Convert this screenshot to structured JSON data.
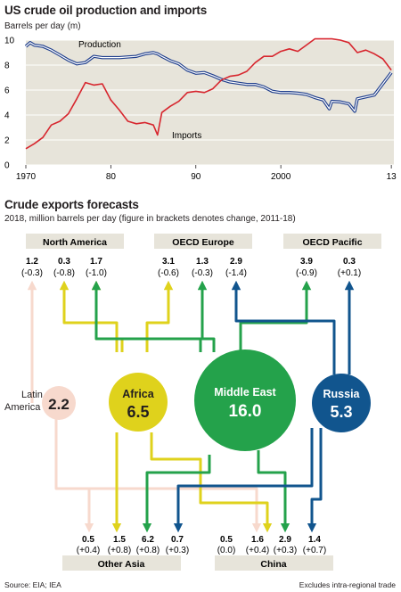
{
  "chart_data": [
    {
      "type": "line",
      "title": "US crude oil production and imports",
      "ylabel": "Barrels per day (m)",
      "ylim": [
        0,
        10
      ],
      "yticks": [
        "0",
        "2",
        "4",
        "6",
        "8",
        "10"
      ],
      "xticks": [
        "1970",
        "80",
        "90",
        "2000",
        "13"
      ],
      "x_tick_years": [
        1970,
        1980,
        1990,
        2000,
        2013
      ],
      "xlim": [
        1970,
        2013.3
      ],
      "grid": true,
      "series": [
        {
          "name": "Production",
          "color": "#1f3e8c",
          "points": [
            [
              1970,
              9.5
            ],
            [
              1970.5,
              9.8
            ],
            [
              1971,
              9.6
            ],
            [
              1972,
              9.5
            ],
            [
              1973,
              9.2
            ],
            [
              1974,
              8.8
            ],
            [
              1975,
              8.4
            ],
            [
              1976,
              8.1
            ],
            [
              1977,
              8.2
            ],
            [
              1978,
              8.7
            ],
            [
              1979,
              8.6
            ],
            [
              1980,
              8.6
            ],
            [
              1981,
              8.6
            ],
            [
              1982,
              8.65
            ],
            [
              1983,
              8.7
            ],
            [
              1984,
              8.9
            ],
            [
              1985,
              9.0
            ],
            [
              1985.5,
              8.9
            ],
            [
              1986,
              8.7
            ],
            [
              1987,
              8.35
            ],
            [
              1988,
              8.1
            ],
            [
              1989,
              7.6
            ],
            [
              1990,
              7.35
            ],
            [
              1991,
              7.4
            ],
            [
              1992,
              7.15
            ],
            [
              1993,
              6.85
            ],
            [
              1994,
              6.65
            ],
            [
              1995,
              6.55
            ],
            [
              1996,
              6.45
            ],
            [
              1997,
              6.45
            ],
            [
              1998,
              6.25
            ],
            [
              1999,
              5.9
            ],
            [
              2000,
              5.8
            ],
            [
              2001,
              5.8
            ],
            [
              2002,
              5.75
            ],
            [
              2003,
              5.65
            ],
            [
              2004,
              5.4
            ],
            [
              2005,
              5.2
            ],
            [
              2005.7,
              4.5
            ],
            [
              2006,
              5.1
            ],
            [
              2007,
              5.05
            ],
            [
              2008,
              4.9
            ],
            [
              2008.7,
              4.3
            ],
            [
              2009,
              5.3
            ],
            [
              2010,
              5.45
            ],
            [
              2011,
              5.6
            ],
            [
              2012,
              6.5
            ],
            [
              2013,
              7.4
            ]
          ]
        },
        {
          "name": "Imports",
          "color": "#d7262e",
          "points": [
            [
              1970,
              1.3
            ],
            [
              1971,
              1.7
            ],
            [
              1972,
              2.2
            ],
            [
              1973,
              3.2
            ],
            [
              1974,
              3.5
            ],
            [
              1975,
              4.1
            ],
            [
              1976,
              5.3
            ],
            [
              1977,
              6.6
            ],
            [
              1978,
              6.4
            ],
            [
              1979,
              6.5
            ],
            [
              1980,
              5.2
            ],
            [
              1981,
              4.4
            ],
            [
              1982,
              3.5
            ],
            [
              1983,
              3.3
            ],
            [
              1984,
              3.4
            ],
            [
              1985,
              3.2
            ],
            [
              1985.5,
              2.4
            ],
            [
              1986,
              4.2
            ],
            [
              1987,
              4.7
            ],
            [
              1988,
              5.1
            ],
            [
              1989,
              5.8
            ],
            [
              1990,
              5.9
            ],
            [
              1991,
              5.8
            ],
            [
              1992,
              6.1
            ],
            [
              1993,
              6.8
            ],
            [
              1994,
              7.1
            ],
            [
              1995,
              7.2
            ],
            [
              1996,
              7.5
            ],
            [
              1997,
              8.2
            ],
            [
              1998,
              8.7
            ],
            [
              1999,
              8.7
            ],
            [
              2000,
              9.1
            ],
            [
              2001,
              9.3
            ],
            [
              2002,
              9.1
            ],
            [
              2003,
              9.6
            ],
            [
              2004,
              10.1
            ],
            [
              2005,
              10.1
            ],
            [
              2006,
              10.1
            ],
            [
              2007,
              10.0
            ],
            [
              2008,
              9.8
            ],
            [
              2009,
              9.0
            ],
            [
              2010,
              9.2
            ],
            [
              2011,
              8.9
            ],
            [
              2012,
              8.5
            ],
            [
              2013,
              7.6
            ]
          ]
        }
      ]
    },
    {
      "type": "diagram",
      "title": "Crude exports forecasts",
      "subtitle": "2018, million barrels per day (figure in brackets denotes change, 2011-18)",
      "exporters": [
        {
          "name": "Latin America",
          "value": "2.2",
          "color": "#f7d9cd"
        },
        {
          "name": "Africa",
          "value": "6.5",
          "color": "#dfd21c"
        },
        {
          "name": "Middle East",
          "value": "16.0",
          "color": "#24a24b"
        },
        {
          "name": "Russia",
          "value": "5.3",
          "color": "#11558e"
        }
      ],
      "importer_regions": [
        {
          "name": "North America",
          "flows": [
            [
              "1.2",
              "(-0.3)"
            ],
            [
              "0.3",
              "(-0.8)"
            ],
            [
              "1.7",
              "(-1.0)"
            ]
          ]
        },
        {
          "name": "OECD Europe",
          "flows": [
            [
              "3.1",
              "(-0.6)"
            ],
            [
              "1.3",
              "(-0.3)"
            ],
            [
              "2.9",
              "(-1.4)"
            ]
          ]
        },
        {
          "name": "OECD Pacific",
          "flows": [
            [
              "3.9",
              "(-0.9)"
            ],
            [
              "0.3",
              "(+0.1)"
            ]
          ]
        },
        {
          "name": "Other Asia",
          "flows": [
            [
              "0.5",
              "(+0.4)"
            ],
            [
              "1.5",
              "(+0.8)"
            ],
            [
              "6.2",
              "(+0.8)"
            ],
            [
              "0.7",
              "(+0.3)"
            ]
          ]
        },
        {
          "name": "China",
          "flows": [
            [
              "0.5",
              "(0.0)"
            ],
            [
              "1.6",
              "(+0.4)"
            ],
            [
              "2.9",
              "(+0.3)"
            ],
            [
              "1.4",
              "(+0.7)"
            ]
          ]
        }
      ]
    }
  ],
  "footer": {
    "source": "Source: EIA; IEA",
    "note": "Excludes intra-regional trade"
  }
}
